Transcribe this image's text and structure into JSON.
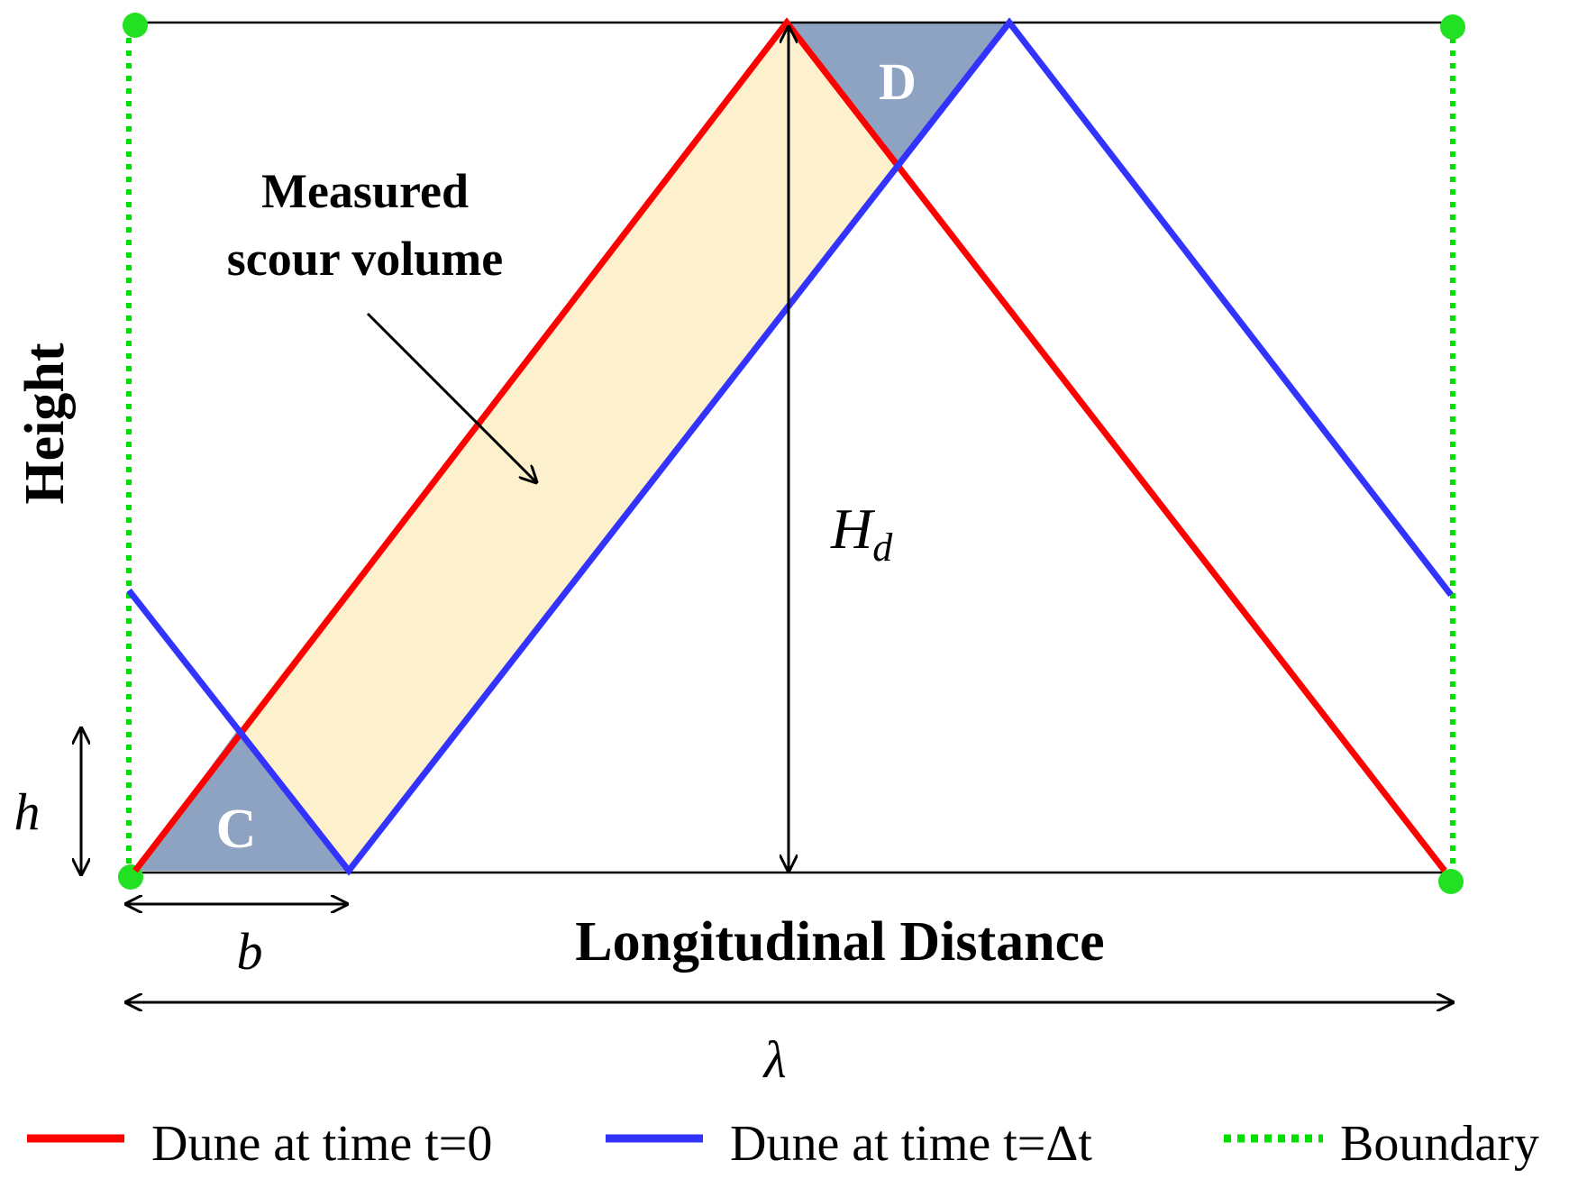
{
  "labels": {
    "measured_line1": "Measured",
    "measured_line2": "scour volume",
    "region_c": "C",
    "region_d": "D",
    "height": "Height",
    "longitudinal": "Longitudinal Distance",
    "h": "h",
    "b": "b",
    "lambda": "λ",
    "hd_main": "H",
    "hd_sub": "d"
  },
  "legend": [
    {
      "label": "Dune at time t=0",
      "color": "#ff0000",
      "style": "solid"
    },
    {
      "label": "Dune at time t=Δt",
      "color": "#3333ff",
      "style": "solid"
    },
    {
      "label": "Boundary",
      "color": "#00e000",
      "style": "dotted"
    }
  ],
  "colors": {
    "dune_t0": "#ff0000",
    "dune_dt": "#3333ff",
    "boundary": "#00e000",
    "scour_fill": "#fdf0cc",
    "region_fill": "#8ea2c2",
    "axis": "#000000"
  }
}
